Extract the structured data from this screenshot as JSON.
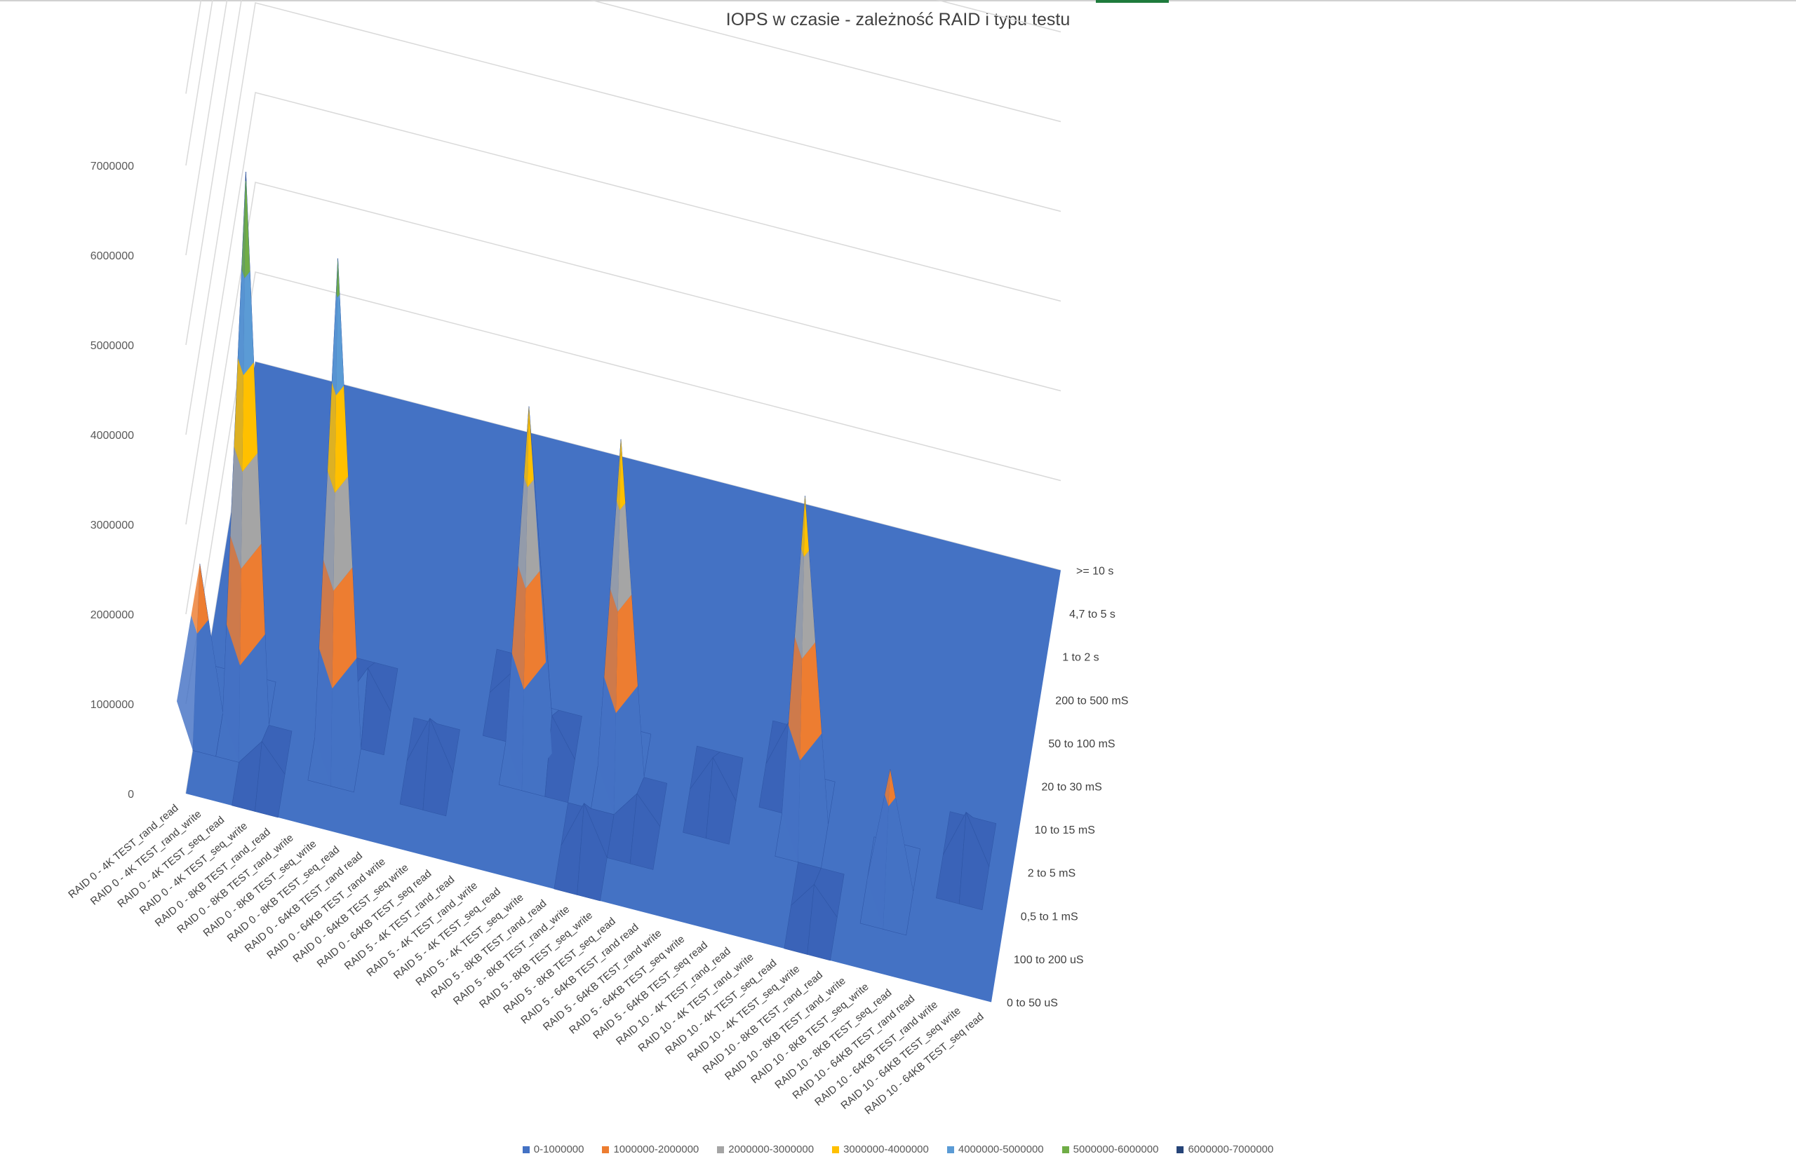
{
  "chart_data": {
    "type": "surface",
    "title": "IOPS w czasie - zależność RAID i typu testu",
    "categories": [
      "RAID 0 - 4K TEST_rand_read",
      "RAID 0 - 4K TEST_rand_write",
      "RAID 0 - 4K TEST_seq_read",
      "RAID 0 - 4K TEST_seq_write",
      "RAID 0 - 8KB TEST_rand_read",
      "RAID 0 - 8KB TEST_rand_write",
      "RAID 0 - 8KB TEST_seq_write",
      "RAID 0 - 8KB TEST_seq_read",
      "RAID 0 - 64KB TEST_rand read",
      "RAID 0 - 64KB TEST_rand write",
      "RAID 0 - 64KB TEST_seq write",
      "RAID 0 - 64KB TEST_seq read",
      "RAID 5 - 4K TEST_rand_read",
      "RAID 5 - 4K TEST_rand_write",
      "RAID 5 - 4K TEST_seq_read",
      "RAID 5 - 4K TEST_seq_write",
      "RAID 5 - 8KB TEST_rand_read",
      "RAID 5 - 8KB TEST_rand_write",
      "RAID 5 - 8KB TEST_seq_write",
      "RAID 5 - 8KB TEST_seq_read",
      "RAID 5 - 64KB TEST_rand read",
      "RAID 5 - 64KB TEST_rand write",
      "RAID 5 - 64KB TEST_seq write",
      "RAID 5 - 64KB TEST_seq read",
      "RAID 10 - 4K TEST_rand_read",
      "RAID 10 - 4K TEST_rand_write",
      "RAID 10 - 4K TEST_seq_read",
      "RAID 10 - 4K TEST_seq_write",
      "RAID 10 - 8KB TEST_rand_read",
      "RAID 10 - 8KB TEST_rand_write",
      "RAID 10 - 8KB TEST_seq_write",
      "RAID 10 - 8KB TEST_seq_read",
      "RAID 10 - 64KB TEST_rand read",
      "RAID 10 - 64KB TEST_rand write",
      "RAID 10 - 64KB TEST_seq write",
      "RAID 10 - 64KB TEST_seq read"
    ],
    "series_axis": [
      "0 to 50 uS",
      "100 to 200 uS",
      "0,5 to 1 mS",
      "2 to 5 mS",
      "10 to 15 mS",
      "20 to 30 mS",
      "50 to 100 mS",
      "200 to 500 mS",
      "1 to 2 s",
      "4,7 to 5 s",
      ">= 10 s"
    ],
    "z_ticks": [
      "0",
      "1000000",
      "2000000",
      "3000000",
      "4000000",
      "5000000",
      "6000000",
      "7000000"
    ],
    "zlim": [
      0,
      7000000
    ],
    "peaks": [
      {
        "category": "RAID 0 - 4K TEST_seq_read",
        "series": "0,5 to 1 mS",
        "value": 6100000
      },
      {
        "category": "RAID 0 - 8KB TEST_seq_write",
        "series": "0,5 to 1 mS",
        "value": 5400000
      },
      {
        "category": "RAID 5 - 4K TEST_seq_read",
        "series": "2 to 5 mS",
        "value": 3800000
      },
      {
        "category": "RAID 5 - 8KB TEST_seq_write",
        "series": "2 to 5 mS",
        "value": 3700000
      },
      {
        "category": "RAID 10 - 4K TEST_seq_read",
        "series": "2 to 5 mS",
        "value": 3600000
      },
      {
        "category": "RAID 10 - 8KB TEST_seq_write",
        "series": "0,5 to 1 mS",
        "value": 1300000
      },
      {
        "category": "RAID 0 - 4K TEST_rand_read",
        "series": "0,5 to 1 mS",
        "value": 1600000
      }
    ],
    "legend": [
      {
        "label": "0-1000000",
        "color": "#4472C4"
      },
      {
        "label": "1000000-2000000",
        "color": "#ED7D31"
      },
      {
        "label": "2000000-3000000",
        "color": "#A5A5A5"
      },
      {
        "label": "3000000-4000000",
        "color": "#FFC000"
      },
      {
        "label": "4000000-5000000",
        "color": "#5B9BD5"
      },
      {
        "label": "5000000-6000000",
        "color": "#70AD47"
      },
      {
        "label": "6000000-7000000",
        "color": "#264478"
      }
    ],
    "grid": true,
    "legend_position": "bottom"
  }
}
